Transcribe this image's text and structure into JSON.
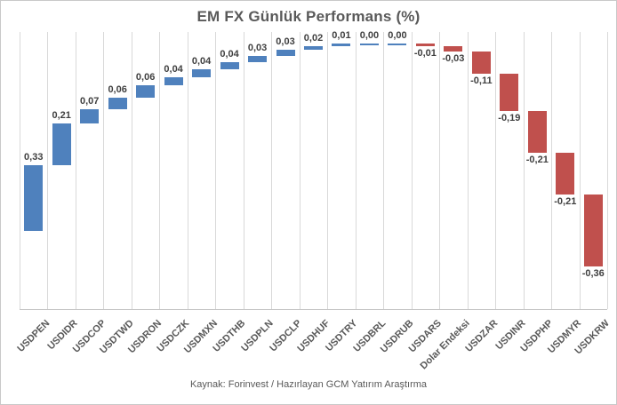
{
  "chart_data": {
    "type": "bar",
    "subtype": "waterfall",
    "title": "EM FX Günlük Performans (%)",
    "categories": [
      "USDPEN",
      "USDIDR",
      "USDCOP",
      "USDTWD",
      "USDRON",
      "USDCZK",
      "USDMXN",
      "USDTHB",
      "USDPLN",
      "USDCLP",
      "USDHUF",
      "USDTRY",
      "USDBRL",
      "USDRUB",
      "USDARS",
      "Dolar Endeksi",
      "USDZAR",
      "USDINR",
      "USDPHP",
      "USDMYR",
      "USDKRW"
    ],
    "values": [
      0.33,
      0.21,
      0.07,
      0.06,
      0.06,
      0.04,
      0.04,
      0.04,
      0.03,
      0.03,
      0.02,
      0.01,
      0.0,
      0.0,
      -0.01,
      -0.03,
      -0.11,
      -0.19,
      -0.21,
      -0.21,
      -0.36
    ],
    "value_labels": [
      "0,33",
      "0,21",
      "0,07",
      "0,06",
      "0,06",
      "0,04",
      "0,04",
      "0,04",
      "0,03",
      "0,03",
      "0,02",
      "0,01",
      "0,00",
      "0,00",
      "-0,01",
      "-0,03",
      "-0,11",
      "-0,19",
      "-0,21",
      "-0,21",
      "-0,36"
    ],
    "ylim": [
      -0.4,
      1.0
    ],
    "grid": "vertical",
    "legend": "none",
    "colors": {
      "positive": "#4F81BD",
      "negative": "#C0504D",
      "gridline": "#D9D9D9",
      "axis_line": "#C6C6C6",
      "title_text": "#595959",
      "data_label_text": "#3F3F3F",
      "axis_label_text": "#595959",
      "background": "#FFFFFF"
    }
  },
  "footer": {
    "source": "Kaynak: Forinvest / Hazırlayan GCM Yatırım Araştırma"
  }
}
